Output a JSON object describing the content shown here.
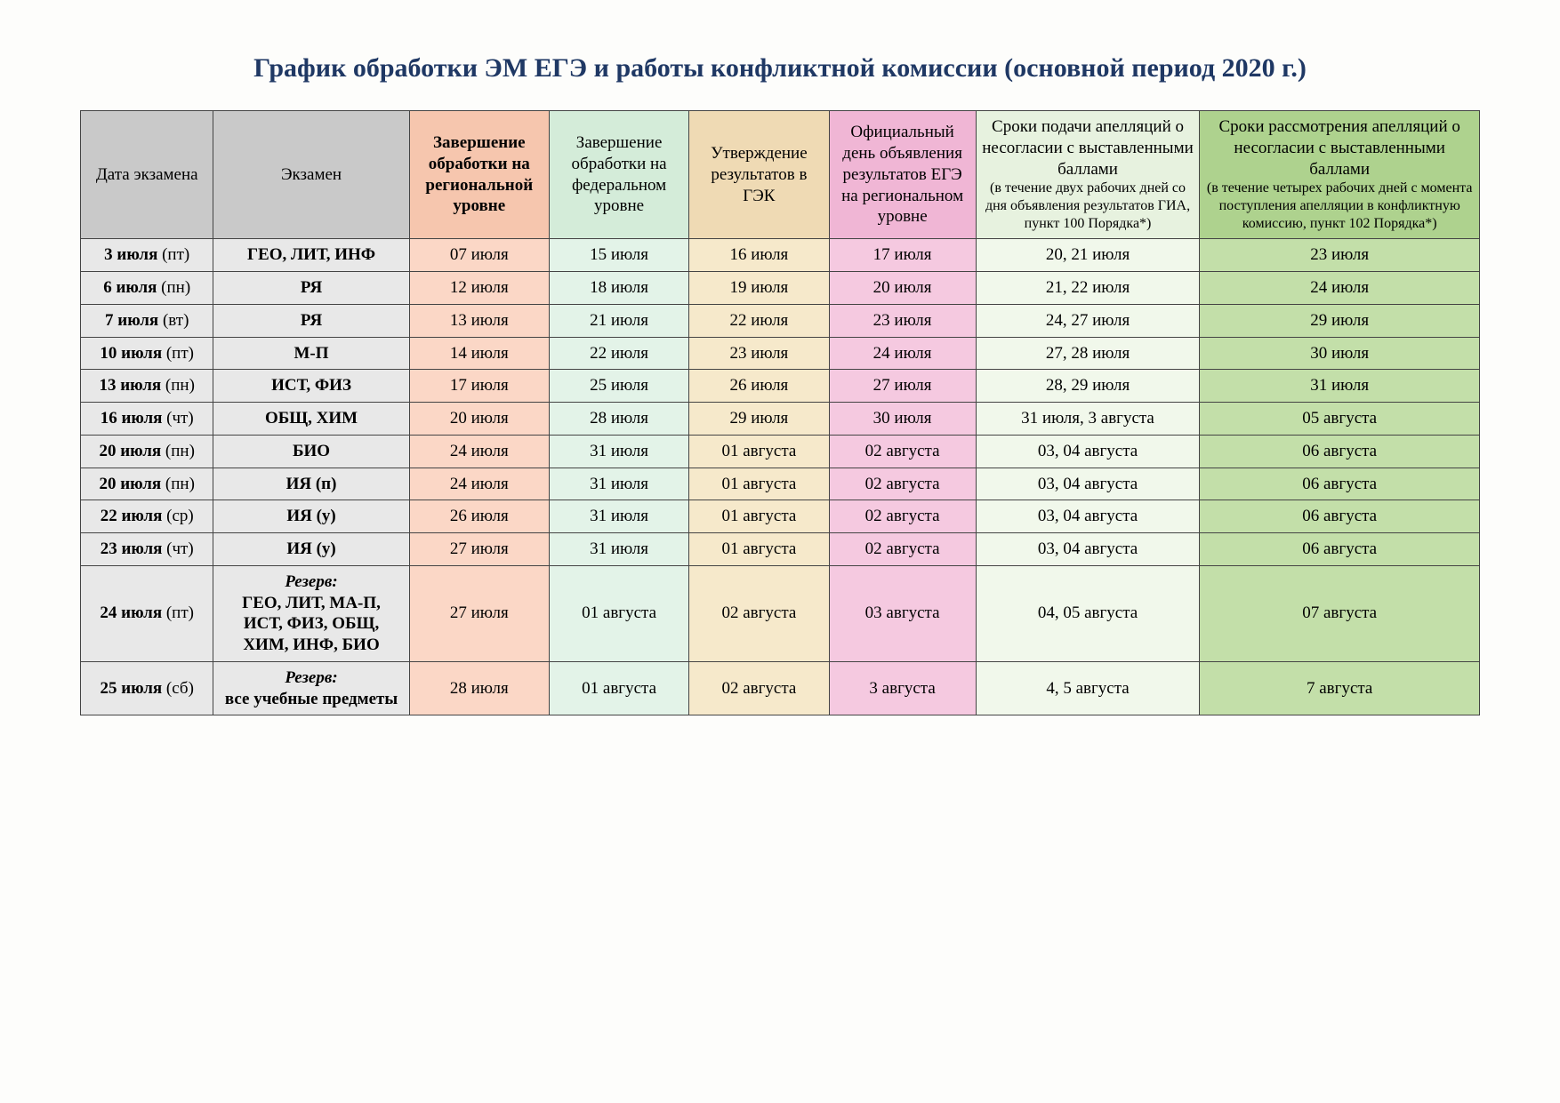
{
  "title": "График обработки ЭМ ЕГЭ и работы конфликтной комиссии (основной период 2020 г.)",
  "colors": {
    "title": "#1f3864",
    "background": "#fdfdfb",
    "border": "#444444",
    "header_gray": "#c9c9c9",
    "header_peach": "#f6c6ae",
    "header_mint": "#d4ecd9",
    "header_tan": "#efdab4",
    "header_pink": "#f0b6d5",
    "header_ltgreen": "#e7f2df",
    "header_green": "#aed28e",
    "row_gray": "#e8e8e8",
    "row_peach": "#fbd7c6",
    "row_mint": "#e3f3e8",
    "row_tan": "#f6e9cb",
    "row_pink": "#f5c9e0",
    "row_ltgreen": "#f1f8eb",
    "row_green": "#c3dfa9"
  },
  "columns": [
    {
      "key": "date",
      "label_main": "Дата экзамена",
      "label_sub": "",
      "bg": "header_gray",
      "bold": false
    },
    {
      "key": "exam",
      "label_main": "Экзамен",
      "label_sub": "",
      "bg": "header_gray",
      "bold": false
    },
    {
      "key": "regional",
      "label_main": "Завершение обработки на региональной уровне",
      "label_sub": "",
      "bg": "header_peach",
      "bold": true
    },
    {
      "key": "federal",
      "label_main": "Завершение обработки на федеральном уровне",
      "label_sub": "",
      "bg": "header_mint",
      "bold": false
    },
    {
      "key": "gek",
      "label_main": "Утверждение результатов в ГЭК",
      "label_sub": "",
      "bg": "header_tan",
      "bold": false
    },
    {
      "key": "official",
      "label_main": "Официальный день объявления результатов ЕГЭ на региональном уровне",
      "label_sub": "",
      "bg": "header_pink",
      "bold": false
    },
    {
      "key": "appeal_submit",
      "label_main": "Сроки подачи апелляций о несогласии с выставленными баллами",
      "label_sub": "(в течение двух рабочих дней со дня объявления результатов ГИА, пункт 100 Порядка*)",
      "bg": "header_ltgreen",
      "bold": false
    },
    {
      "key": "appeal_review",
      "label_main": "Сроки рассмотрения апелляций о несогласии с выставленными баллами",
      "label_sub": "(в течение четырех рабочих дней с момента поступления апелляции в конфликтную комиссию, пункт 102 Порядка*)",
      "bg": "header_green",
      "bold": false
    }
  ],
  "column_cell_bg": {
    "date": "row_gray",
    "exam": "row_gray",
    "regional": "row_peach",
    "federal": "row_mint",
    "gek": "row_tan",
    "official": "row_pink",
    "appeal_submit": "row_ltgreen",
    "appeal_review": "row_green"
  },
  "rows": [
    {
      "date_bold": "3 июля",
      "date_day": "(пт)",
      "exam": "ГЕО, ЛИТ, ИНФ",
      "regional": "07 июля",
      "federal": "15 июля",
      "gek": "16 июля",
      "official": "17 июля",
      "appeal_submit": "20, 21 июля",
      "appeal_review": "23 июля"
    },
    {
      "date_bold": "6 июля",
      "date_day": "(пн)",
      "exam": "РЯ",
      "regional": "12 июля",
      "federal": "18 июля",
      "gek": "19 июля",
      "official": "20 июля",
      "appeal_submit": "21, 22 июля",
      "appeal_review": "24 июля"
    },
    {
      "date_bold": "7 июля",
      "date_day": "(вт)",
      "exam": "РЯ",
      "regional": "13 июля",
      "federal": "21 июля",
      "gek": "22 июля",
      "official": "23 июля",
      "appeal_submit": "24, 27 июля",
      "appeal_review": "29 июля"
    },
    {
      "date_bold": "10 июля",
      "date_day": "(пт)",
      "exam": "М-П",
      "regional": "14 июля",
      "federal": "22 июля",
      "gek": "23 июля",
      "official": "24 июля",
      "appeal_submit": "27, 28 июля",
      "appeal_review": "30 июля"
    },
    {
      "date_bold": "13 июля",
      "date_day": "(пн)",
      "exam": "ИСТ, ФИЗ",
      "regional": "17 июля",
      "federal": "25 июля",
      "gek": "26 июля",
      "official": "27 июля",
      "appeal_submit": "28, 29 июля",
      "appeal_review": "31 июля"
    },
    {
      "date_bold": "16 июля",
      "date_day": "(чт)",
      "exam": "ОБЩ, ХИМ",
      "regional": "20 июля",
      "federal": "28 июля",
      "gek": "29 июля",
      "official": "30 июля",
      "appeal_submit": "31 июля, 3 августа",
      "appeal_review": "05 августа"
    },
    {
      "date_bold": "20 июля",
      "date_day": "(пн)",
      "exam": "БИО",
      "regional": "24 июля",
      "federal": "31 июля",
      "gek": "01 августа",
      "official": "02 августа",
      "appeal_submit": "03, 04 августа",
      "appeal_review": "06 августа"
    },
    {
      "date_bold": "20 июля",
      "date_day": "(пн)",
      "exam": "ИЯ (п)",
      "regional": "24 июля",
      "federal": "31 июля",
      "gek": "01 августа",
      "official": "02 августа",
      "appeal_submit": "03, 04 августа",
      "appeal_review": "06 августа"
    },
    {
      "date_bold": "22 июля",
      "date_day": "(ср)",
      "exam": "ИЯ (у)",
      "regional": "26 июля",
      "federal": "31 июля",
      "gek": "01 августа",
      "official": "02 августа",
      "appeal_submit": "03, 04 августа",
      "appeal_review": "06 августа"
    },
    {
      "date_bold": "23 июля",
      "date_day": "(чт)",
      "exam": "ИЯ (у)",
      "regional": "27 июля",
      "federal": "31 июля",
      "gek": "01 августа",
      "official": "02 августа",
      "appeal_submit": "03, 04 августа",
      "appeal_review": "06 августа"
    },
    {
      "date_bold": "24 июля",
      "date_day": "(пт)",
      "exam_reserve": "Резерв:",
      "exam_lines": [
        "ГЕО, ЛИТ, МА-П,",
        "ИСТ, ФИЗ, ОБЩ,",
        "ХИМ, ИНФ, БИО"
      ],
      "regional": "27 июля",
      "federal": "01 августа",
      "gek": "02 августа",
      "official": "03 августа",
      "appeal_submit": "04, 05 августа",
      "appeal_review": "07 августа"
    },
    {
      "date_bold": "25 июля",
      "date_day": "(сб)",
      "exam_reserve": "Резерв:",
      "exam_lines": [
        "все учебные предметы"
      ],
      "regional": "28 июля",
      "federal": "01 августа",
      "gek": "02 августа",
      "official": "3 августа",
      "appeal_submit": "4, 5 августа",
      "appeal_review": "7 августа"
    }
  ],
  "typography": {
    "title_fontsize": 30,
    "cell_fontsize": 19,
    "header_sub_fontsize": 16,
    "font_family": "Times New Roman"
  }
}
